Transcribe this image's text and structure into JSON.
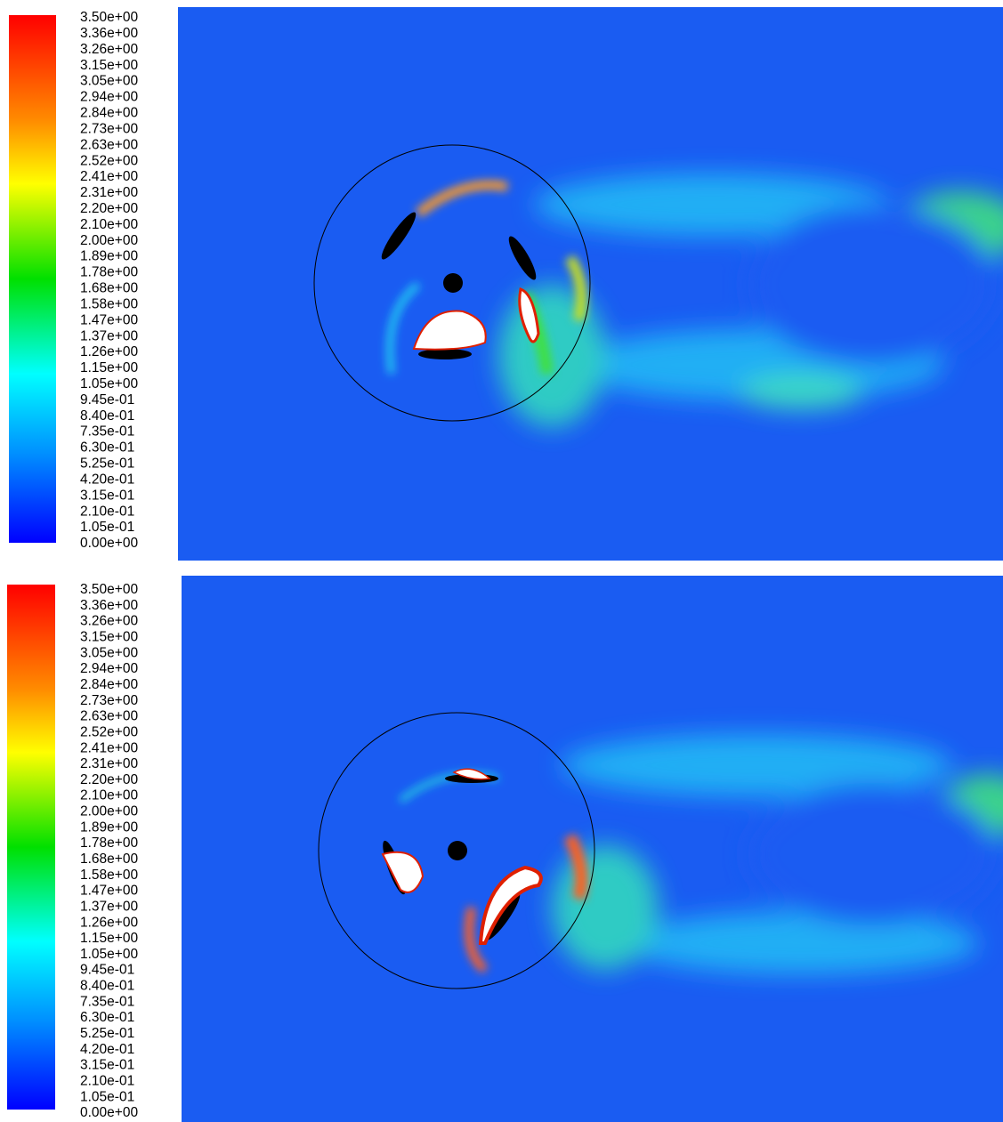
{
  "panels": [
    {
      "colorbar_labels": [
        "3.50e+00",
        "3.36e+00",
        "3.26e+00",
        "3.15e+00",
        "3.05e+00",
        "2.94e+00",
        "2.84e+00",
        "2.73e+00",
        "2.63e+00",
        "2.52e+00",
        "2.41e+00",
        "2.31e+00",
        "2.20e+00",
        "2.10e+00",
        "2.00e+00",
        "1.89e+00",
        "1.78e+00",
        "1.68e+00",
        "1.58e+00",
        "1.47e+00",
        "1.37e+00",
        "1.26e+00",
        "1.15e+00",
        "1.05e+00",
        "9.45e-01",
        "8.40e-01",
        "7.35e-01",
        "6.30e-01",
        "5.25e-01",
        "4.20e-01",
        "3.15e-01",
        "2.10e-01",
        "1.05e-01",
        "0.00e+00"
      ]
    },
    {
      "colorbar_labels": [
        "3.50e+00",
        "3.36e+00",
        "3.26e+00",
        "3.15e+00",
        "3.05e+00",
        "2.94e+00",
        "2.84e+00",
        "2.73e+00",
        "2.63e+00",
        "2.52e+00",
        "2.41e+00",
        "2.31e+00",
        "2.20e+00",
        "2.10e+00",
        "2.00e+00",
        "1.89e+00",
        "1.78e+00",
        "1.68e+00",
        "1.58e+00",
        "1.47e+00",
        "1.37e+00",
        "1.26e+00",
        "1.15e+00",
        "1.05e+00",
        "9.45e-01",
        "8.40e-01",
        "7.35e-01",
        "6.30e-01",
        "5.25e-01",
        "4.20e-01",
        "3.15e-01",
        "2.10e-01",
        "1.05e-01",
        "0.00e+00"
      ]
    }
  ]
}
